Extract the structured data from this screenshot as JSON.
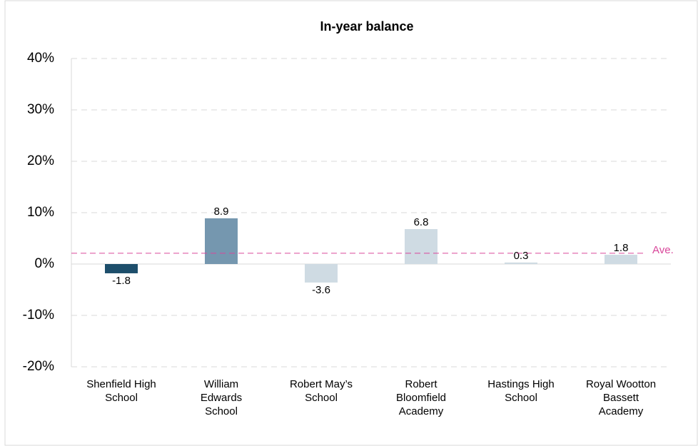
{
  "chart_data": {
    "type": "bar",
    "title": "In-year balance",
    "categories": [
      [
        "Shenfield High",
        "School"
      ],
      [
        "William",
        "Edwards",
        "School"
      ],
      [
        "Robert May’s",
        "School"
      ],
      [
        "Robert",
        "Bloomfield",
        "Academy"
      ],
      [
        "Hastings High",
        "School"
      ],
      [
        "Royal Wootton",
        "Bassett",
        "Academy"
      ]
    ],
    "values": [
      -1.8,
      8.9,
      -3.6,
      6.8,
      0.3,
      1.8
    ],
    "colors": [
      "#1d4e6b",
      "#7597af",
      "#cfdbe3",
      "#cfdbe3",
      "#cfdbe3",
      "#cfdbe3"
    ],
    "ylim": [
      -20,
      40
    ],
    "yticks": [
      {
        "value": -20,
        "label": "-20%"
      },
      {
        "value": -10,
        "label": "-10%"
      },
      {
        "value": 0,
        "label": "0%"
      },
      {
        "value": 10,
        "label": "10%"
      },
      {
        "value": 20,
        "label": "20%"
      },
      {
        "value": 30,
        "label": "30%"
      },
      {
        "value": 40,
        "label": "40%"
      }
    ],
    "grid": true,
    "average": {
      "value": 2.1,
      "label": "Ave.",
      "color": "#d9479b"
    }
  }
}
